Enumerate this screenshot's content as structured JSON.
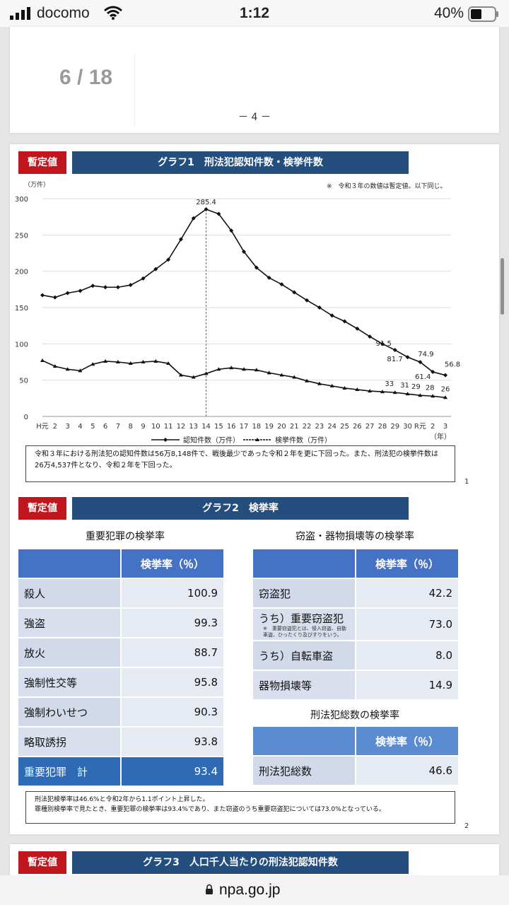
{
  "status_bar": {
    "carrier": "docomo",
    "time": "1:12",
    "battery": "40%"
  },
  "viewer": {
    "page_counter": "6 / 18",
    "page_footer": "－ 4 －"
  },
  "section1": {
    "badge": "暫定値",
    "title": "グラフ1　刑法犯認知件数・検挙件数",
    "note": "※　令和３年の数値は暫定値。以下同じ。",
    "text": "令和３年における刑法犯の認知件数は56万8,148件で、戦後最少であった令和２年を更に下回った。また、刑法犯の検挙件数は26万4,537件となり、令和２年を下回った。",
    "page_number": "1"
  },
  "chart_data": {
    "type": "line",
    "ylabel": "（万件）",
    "xlabel": "（年）",
    "ylim": [
      0,
      300
    ],
    "yticks": [
      0,
      50,
      100,
      150,
      200,
      250,
      300
    ],
    "grid": true,
    "legend_position": "bottom",
    "categories": [
      "H元",
      "2",
      "3",
      "4",
      "5",
      "6",
      "7",
      "8",
      "9",
      "10",
      "11",
      "12",
      "13",
      "14",
      "15",
      "16",
      "17",
      "18",
      "19",
      "20",
      "21",
      "22",
      "23",
      "24",
      "25",
      "26",
      "27",
      "28",
      "29",
      "30",
      "R元",
      "2",
      "3"
    ],
    "series": [
      {
        "name": "認知件数（万件）",
        "marker": "diamond",
        "values": [
          167,
          164,
          170,
          173,
          180,
          178,
          178,
          181,
          190,
          203,
          216,
          244,
          273,
          285.4,
          279,
          256,
          227,
          205,
          191,
          182,
          171,
          160,
          150,
          139,
          131,
          121,
          110,
          100,
          91.5,
          81.7,
          74.9,
          61.4,
          56.8
        ]
      },
      {
        "name": "検挙件数（万件）",
        "marker": "triangle",
        "values": [
          77,
          69,
          65,
          63,
          72,
          76,
          75,
          73,
          75,
          76,
          73,
          57,
          54,
          59,
          65,
          67,
          65,
          64,
          60,
          57,
          54,
          49,
          45,
          42,
          39,
          37,
          35,
          34,
          33,
          31,
          29,
          28,
          26
        ]
      }
    ],
    "annotations": [
      {
        "text": "285.4",
        "x": "14",
        "value": 285.4
      },
      {
        "text": "91.5",
        "x": "29",
        "value": 91.5
      },
      {
        "text": "81.7",
        "x": "30",
        "value": 81.7
      },
      {
        "text": "74.9",
        "x": "R元",
        "value": 74.9
      },
      {
        "text": "61.4",
        "x": "2",
        "value": 61.4
      },
      {
        "text": "56.8",
        "x": "3",
        "value": 56.8
      },
      {
        "text": "33",
        "x": "29",
        "value": 33
      },
      {
        "text": "31",
        "x": "30",
        "value": 31
      },
      {
        "text": "29",
        "x": "R元",
        "value": 29
      },
      {
        "text": "28",
        "x": "2",
        "value": 28
      },
      {
        "text": "26",
        "x": "3",
        "value": 26
      }
    ]
  },
  "section2": {
    "badge": "暫定値",
    "title": "グラフ2　検挙率",
    "left_heading": "重要犯罪の検挙率",
    "right_heading": "窃盗・器物損壊等の検挙率",
    "total_heading": "刑法犯総数の検挙率",
    "col_header": "検挙率（％）",
    "serious_crimes": [
      {
        "name": "殺人",
        "rate": "100.9"
      },
      {
        "name": "強盗",
        "rate": "99.3"
      },
      {
        "name": "放火",
        "rate": "88.7"
      },
      {
        "name": "強制性交等",
        "rate": "95.8"
      },
      {
        "name": "強制わいせつ",
        "rate": "90.3"
      },
      {
        "name": "略取誘拐",
        "rate": "93.8"
      }
    ],
    "serious_total": {
      "name": "重要犯罪　計",
      "rate": "93.4"
    },
    "theft": [
      {
        "name": "窃盗犯",
        "rate": "42.2"
      },
      {
        "name": "うち）重要窃盗犯",
        "rate": "73.0",
        "note": "※　重要窃盗犯とは、侵入窃盗、自動車盗、ひったくり及びすりをいう。"
      },
      {
        "name": "うち）自転車盗",
        "rate": "8.0"
      },
      {
        "name": "器物損壊等",
        "rate": "14.9"
      }
    ],
    "total": {
      "name": "刑法犯総数",
      "rate": "46.6"
    },
    "text_line1": "刑法犯検挙率は46.6%と令和2年から1.1ポイント上昇した。",
    "text_line2": "罪種別検挙率で見たとき、重要犯罪の検挙率は93.4%であり、また窃盗のうち重要窃盗犯については73.0%となっている。",
    "page_number": "2"
  },
  "section3": {
    "badge": "暫定値",
    "title": "グラフ3　人口千人当たりの刑法犯認知件数"
  },
  "address_bar": {
    "url": "npa.go.jp"
  }
}
